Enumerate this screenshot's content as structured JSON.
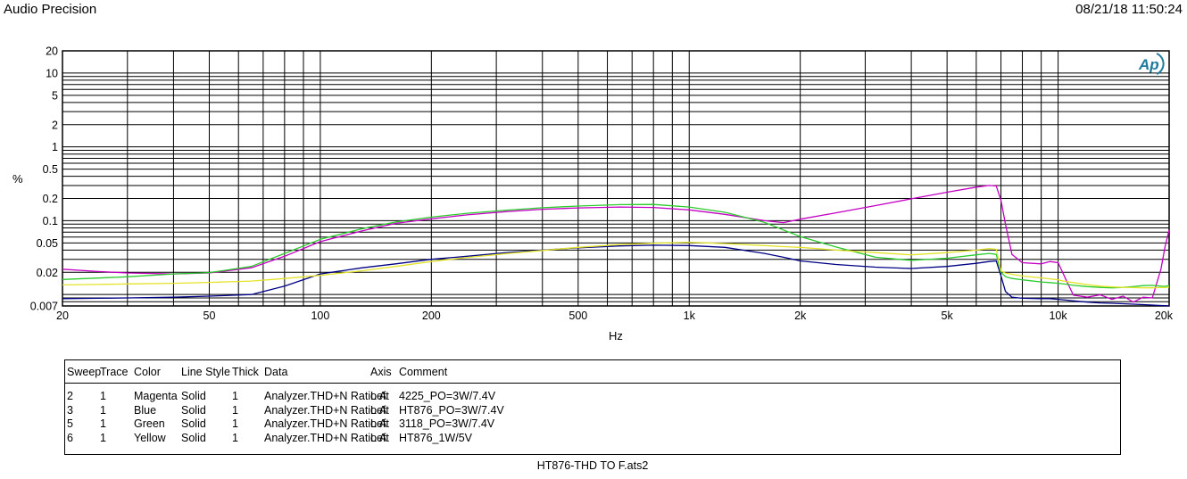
{
  "header": {
    "app_title": "Audio Precision",
    "timestamp": "08/21/18 11:50:24"
  },
  "plot": {
    "ylabel": "%",
    "xlabel": "Hz",
    "logo_text": "Ap",
    "logo_color": "#1d7a9e",
    "grid_color": "#000000",
    "x_ticks": [
      {
        "v": 20,
        "label": "20"
      },
      {
        "v": 50,
        "label": "50"
      },
      {
        "v": 100,
        "label": "100"
      },
      {
        "v": 200,
        "label": "200"
      },
      {
        "v": 500,
        "label": "500"
      },
      {
        "v": 1000,
        "label": "1k"
      },
      {
        "v": 2000,
        "label": "2k"
      },
      {
        "v": 5000,
        "label": "5k"
      },
      {
        "v": 10000,
        "label": "10k"
      },
      {
        "v": 20000,
        "label": "20k"
      }
    ],
    "y_ticks": [
      {
        "v": 20,
        "label": "20"
      },
      {
        "v": 10,
        "label": "10"
      },
      {
        "v": 5,
        "label": "5"
      },
      {
        "v": 2,
        "label": "2"
      },
      {
        "v": 1,
        "label": "1"
      },
      {
        "v": 0.5,
        "label": "0.5"
      },
      {
        "v": 0.2,
        "label": "0.2"
      },
      {
        "v": 0.1,
        "label": "0.1"
      },
      {
        "v": 0.05,
        "label": "0.05"
      },
      {
        "v": 0.02,
        "label": "0.02"
      },
      {
        "v": 0.007,
        "label": "0.007"
      }
    ]
  },
  "chart_data": {
    "type": "line",
    "title": "",
    "xlabel": "Hz",
    "ylabel": "%",
    "x_scale": "log",
    "y_scale": "log",
    "x_range": [
      20,
      20000
    ],
    "y_range": [
      0.007,
      20
    ],
    "grid": "on",
    "legend_position": "table-below",
    "x": [
      20,
      25,
      30,
      40,
      50,
      65,
      80,
      100,
      130,
      160,
      200,
      250,
      320,
      400,
      500,
      650,
      800,
      1000,
      1250,
      1600,
      1800,
      2000,
      2500,
      3200,
      4000,
      5000,
      6000,
      6500,
      6800,
      7000,
      7200,
      7500,
      8000,
      9000,
      9500,
      10000,
      10500,
      11000,
      12000,
      13000,
      14000,
      15000,
      16000,
      17000,
      18000,
      19000,
      19500,
      20000
    ],
    "series": [
      {
        "name": "4225_PO=3W/7.4V",
        "color_name": "Magenta",
        "color": "#c400c4",
        "values": [
          0.022,
          0.0205,
          0.0196,
          0.019,
          0.0196,
          0.023,
          0.033,
          0.052,
          0.073,
          0.092,
          0.106,
          0.12,
          0.133,
          0.143,
          0.149,
          0.153,
          0.151,
          0.14,
          0.122,
          0.1,
          0.094,
          0.105,
          0.128,
          0.16,
          0.198,
          0.243,
          0.285,
          0.3,
          0.295,
          0.19,
          0.09,
          0.035,
          0.027,
          0.026,
          0.028,
          0.027,
          0.016,
          0.0098,
          0.0092,
          0.0099,
          0.0086,
          0.0095,
          0.0079,
          0.0092,
          0.009,
          0.022,
          0.045,
          0.075
        ]
      },
      {
        "name": "HT876_PO=3W/7.4V",
        "color_name": "Blue",
        "color": "#000085",
        "values": [
          0.0088,
          0.0089,
          0.009,
          0.0092,
          0.0095,
          0.01,
          0.013,
          0.019,
          0.023,
          0.026,
          0.03,
          0.033,
          0.037,
          0.04,
          0.043,
          0.0455,
          0.0465,
          0.046,
          0.0435,
          0.036,
          0.032,
          0.0285,
          0.0255,
          0.0235,
          0.0225,
          0.024,
          0.0265,
          0.028,
          0.0285,
          0.018,
          0.011,
          0.0092,
          0.0089,
          0.0088,
          0.0088,
          0.0086,
          0.0084,
          0.0082,
          0.0079,
          0.0077,
          0.0076,
          0.0075,
          0.0074,
          0.0073,
          0.0072,
          0.0071,
          0.00705,
          0.007
        ]
      },
      {
        "name": "3118_PO=3W/7.4V",
        "color_name": "Green",
        "color": "#2bcc2b",
        "values": [
          0.016,
          0.0167,
          0.0174,
          0.019,
          0.0198,
          0.024,
          0.036,
          0.056,
          0.078,
          0.096,
          0.112,
          0.126,
          0.139,
          0.15,
          0.158,
          0.165,
          0.166,
          0.153,
          0.13,
          0.095,
          0.075,
          0.061,
          0.044,
          0.032,
          0.029,
          0.031,
          0.0345,
          0.036,
          0.035,
          0.02,
          0.0175,
          0.0165,
          0.0158,
          0.0148,
          0.0145,
          0.0142,
          0.0138,
          0.0133,
          0.0128,
          0.0125,
          0.0123,
          0.0125,
          0.0128,
          0.0132,
          0.0133,
          0.013,
          0.0129,
          0.0132
        ]
      },
      {
        "name": "HT876_1W/5V",
        "color_name": "Yellow",
        "color": "#e3e32a",
        "values": [
          0.0135,
          0.0137,
          0.0139,
          0.0142,
          0.0146,
          0.0152,
          0.0165,
          0.0182,
          0.021,
          0.024,
          0.028,
          0.0318,
          0.0358,
          0.0395,
          0.0435,
          0.0475,
          0.0495,
          0.051,
          0.049,
          0.046,
          0.0445,
          0.0435,
          0.04,
          0.037,
          0.0345,
          0.037,
          0.04,
          0.042,
          0.041,
          0.021,
          0.0195,
          0.0188,
          0.0178,
          0.0168,
          0.0163,
          0.0158,
          0.015,
          0.0145,
          0.0136,
          0.013,
          0.0127,
          0.0125,
          0.0124,
          0.0123,
          0.0123,
          0.0124,
          0.0124,
          0.0126
        ]
      }
    ]
  },
  "legend_table": {
    "columns": [
      "Sweep",
      "Trace",
      "Color",
      "Line Style",
      "Thick",
      "Data",
      "Axis",
      "Comment"
    ],
    "rows": [
      [
        "2",
        "1",
        "Magenta",
        "Solid",
        "1",
        "Analyzer.THD+N Ratio A",
        "Left",
        "4225_PO=3W/7.4V"
      ],
      [
        "3",
        "1",
        "Blue",
        "Solid",
        "1",
        "Analyzer.THD+N Ratio A",
        "Left",
        "HT876_PO=3W/7.4V"
      ],
      [
        "5",
        "1",
        "Green",
        "Solid",
        "1",
        "Analyzer.THD+N Ratio A",
        "Left",
        "3118_PO=3W/7.4V"
      ],
      [
        "6",
        "1",
        "Yellow",
        "Solid",
        "1",
        "Analyzer.THD+N Ratio A",
        "Left",
        "HT876_1W/5V"
      ]
    ]
  },
  "footer": {
    "caption": "HT876-THD TO F.ats2"
  }
}
